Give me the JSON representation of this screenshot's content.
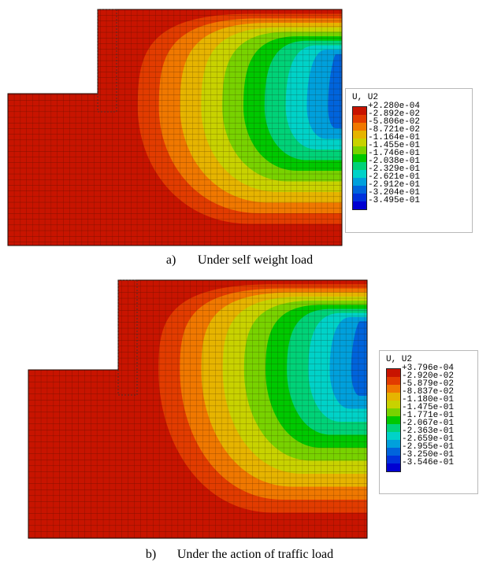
{
  "figures": [
    {
      "id": "a",
      "caption_label": "a)",
      "caption_text": "Under self weight load",
      "legend": {
        "title": "U, U2",
        "values": [
          "+2.280e-04",
          "-2.892e-02",
          "-5.806e-02",
          "-8.721e-02",
          "-1.164e-01",
          "-1.455e-01",
          "-1.746e-01",
          "-2.038e-01",
          "-2.329e-01",
          "-2.621e-01",
          "-2.912e-01",
          "-3.204e-01",
          "-3.495e-01"
        ]
      }
    },
    {
      "id": "b",
      "caption_label": "b)",
      "caption_text": "Under the action of traffic load",
      "legend": {
        "title": "U, U2",
        "values": [
          "+3.796e-04",
          "-2.920e-02",
          "-5.879e-02",
          "-8.837e-02",
          "-1.180e-01",
          "-1.475e-01",
          "-1.771e-01",
          "-2.067e-01",
          "-2.363e-01",
          "-2.659e-01",
          "-2.955e-01",
          "-3.250e-01",
          "-3.546e-01"
        ]
      }
    }
  ],
  "colors": {
    "contour": [
      "#c81400",
      "#e23c00",
      "#f07800",
      "#e6b400",
      "#c8d200",
      "#78d200",
      "#00c800",
      "#00d278",
      "#00d2c8",
      "#00a0dc",
      "#0064dc",
      "#0032dc",
      "#0000d2"
    ],
    "mesh_line": "#1e0a00",
    "legend_border": "#b9b9b9"
  }
}
